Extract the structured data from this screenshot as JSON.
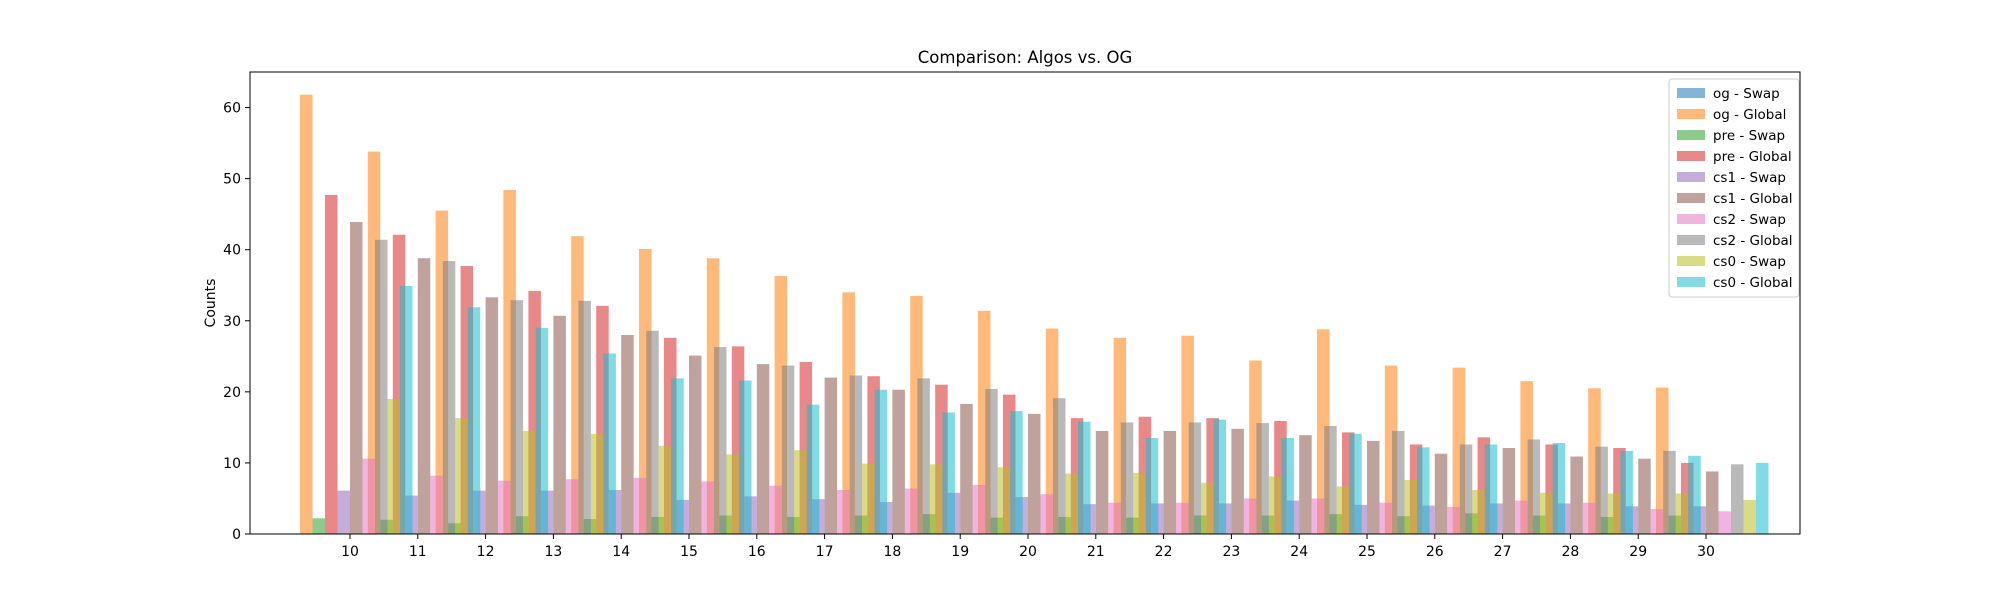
{
  "chart_data": {
    "type": "bar",
    "title": "Comparison: Algos vs. OG",
    "xlabel": "",
    "ylabel": "Counts",
    "ylim": [
      0,
      65
    ],
    "yticks": [
      0,
      10,
      20,
      30,
      40,
      50,
      60
    ],
    "grid": false,
    "legend_position": "top-right",
    "categories": [
      "10",
      "11",
      "12",
      "13",
      "14",
      "15",
      "16",
      "17",
      "18",
      "19",
      "20",
      "21",
      "22",
      "23",
      "24",
      "25",
      "26",
      "27",
      "28",
      "29",
      "30"
    ],
    "series": [
      {
        "name": "og - Swap",
        "color": "#1f77b4",
        "values": [
          0,
          0,
          0,
          0,
          0,
          0,
          0,
          0,
          0,
          0,
          0,
          0,
          0,
          0,
          0,
          0,
          0,
          0,
          0,
          0,
          0
        ]
      },
      {
        "name": "og - Global",
        "color": "#ff7f0e",
        "values": [
          61.8,
          53.8,
          45.5,
          48.4,
          41.9,
          40.1,
          38.8,
          36.3,
          34.0,
          33.5,
          31.4,
          28.9,
          27.6,
          27.9,
          24.4,
          28.8,
          23.7,
          23.4,
          21.5,
          20.5,
          20.6
        ]
      },
      {
        "name": "pre - Swap",
        "color": "#2ca02c",
        "values": [
          2.2,
          2.0,
          1.5,
          2.5,
          2.1,
          2.4,
          2.6,
          2.4,
          2.6,
          2.8,
          2.3,
          2.4,
          2.3,
          2.6,
          2.6,
          2.8,
          2.5,
          2.9,
          2.6,
          2.4,
          2.6
        ]
      },
      {
        "name": "pre - Global",
        "color": "#d62728",
        "values": [
          47.7,
          42.1,
          37.7,
          34.2,
          32.1,
          27.6,
          26.4,
          24.2,
          22.2,
          21.0,
          19.6,
          16.3,
          16.5,
          16.3,
          15.9,
          14.3,
          12.6,
          13.6,
          12.6,
          12.1,
          10.0
        ]
      },
      {
        "name": "cs1 - Swap",
        "color": "#9467bd",
        "values": [
          6.1,
          5.4,
          6.1,
          6.1,
          6.2,
          4.8,
          5.3,
          4.9,
          4.5,
          5.8,
          5.2,
          4.2,
          4.3,
          4.3,
          4.7,
          4.1,
          4.0,
          4.3,
          4.3,
          3.9,
          3.9
        ]
      },
      {
        "name": "cs1 - Global",
        "color": "#8c564b",
        "values": [
          43.9,
          38.8,
          33.3,
          30.7,
          28.0,
          25.1,
          23.9,
          22.0,
          20.3,
          18.3,
          16.9,
          14.5,
          14.5,
          14.8,
          13.9,
          13.1,
          11.3,
          12.1,
          10.9,
          10.6,
          8.8
        ]
      },
      {
        "name": "cs2 - Swap",
        "color": "#e377c2",
        "values": [
          10.6,
          8.2,
          7.5,
          7.7,
          7.9,
          7.4,
          6.8,
          6.2,
          6.4,
          6.9,
          5.6,
          4.4,
          4.4,
          5.0,
          5.0,
          4.4,
          3.8,
          4.7,
          4.4,
          3.5,
          3.2
        ]
      },
      {
        "name": "cs2 - Global",
        "color": "#7f7f7f",
        "values": [
          41.4,
          38.4,
          32.9,
          32.8,
          28.6,
          26.3,
          23.7,
          22.3,
          21.9,
          20.4,
          19.1,
          15.7,
          15.7,
          15.6,
          15.2,
          14.5,
          12.6,
          13.3,
          12.3,
          11.7,
          9.8
        ]
      },
      {
        "name": "cs0 - Swap",
        "color": "#bcbd22",
        "values": [
          19.0,
          16.3,
          14.5,
          14.1,
          12.4,
          11.2,
          11.8,
          9.9,
          9.8,
          9.4,
          8.5,
          8.6,
          7.2,
          8.1,
          6.7,
          7.6,
          6.2,
          5.8,
          5.7,
          5.7,
          4.8
        ]
      },
      {
        "name": "cs0 - Global",
        "color": "#17becf",
        "values": [
          34.9,
          31.9,
          29.0,
          25.4,
          21.9,
          21.6,
          18.2,
          20.3,
          17.1,
          17.3,
          15.8,
          13.5,
          16.1,
          13.5,
          14.1,
          12.2,
          12.6,
          12.8,
          11.7,
          11.0,
          10.0
        ]
      }
    ]
  }
}
